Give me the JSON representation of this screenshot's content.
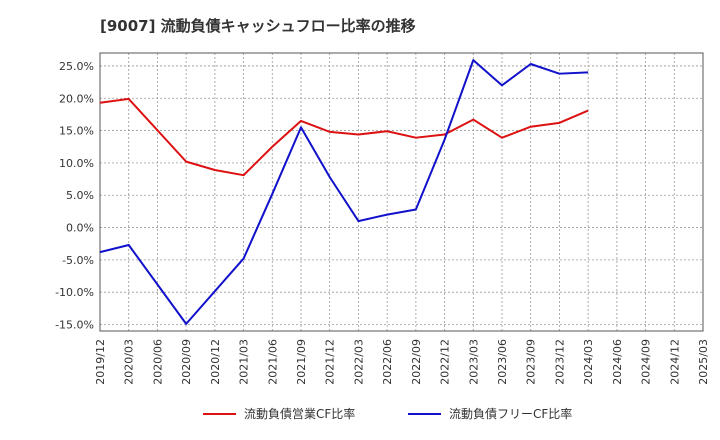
{
  "chart_data": {
    "type": "line",
    "title": "[9007]  流動負債キャッシュフロー比率の推移",
    "xlabel": "",
    "ylabel": "",
    "ylim": [
      -16,
      27
    ],
    "grid": true,
    "legend_position": "bottom",
    "x_ticks": [
      "2019/12",
      "2020/03",
      "2020/06",
      "2020/09",
      "2020/12",
      "2021/03",
      "2021/06",
      "2021/09",
      "2021/12",
      "2022/03",
      "2022/06",
      "2022/09",
      "2022/12",
      "2023/03",
      "2023/06",
      "2023/09",
      "2023/12",
      "2024/03",
      "2024/06",
      "2024/09",
      "2024/12",
      "2025/03"
    ],
    "y_ticks": [
      {
        "value": 25,
        "label": "25.0%"
      },
      {
        "value": 20,
        "label": "20.0%"
      },
      {
        "value": 15,
        "label": "15.0%"
      },
      {
        "value": 10,
        "label": "10.0%"
      },
      {
        "value": 5,
        "label": "5.0%"
      },
      {
        "value": 0,
        "label": "0.0%"
      },
      {
        "value": -5,
        "label": "-5.0%"
      },
      {
        "value": -10,
        "label": "-10.0%"
      },
      {
        "value": -15,
        "label": "-15.0%"
      }
    ],
    "series": [
      {
        "name": "流動負債営業CF比率",
        "color": "#dd1111",
        "points": [
          {
            "x": "2019/12",
            "y": 19.3
          },
          {
            "x": "2020/03",
            "y": 19.9
          },
          {
            "x": "2020/09",
            "y": 10.2
          },
          {
            "x": "2020/12",
            "y": 8.9
          },
          {
            "x": "2021/03",
            "y": 8.1
          },
          {
            "x": "2021/06",
            "y": 12.5
          },
          {
            "x": "2021/09",
            "y": 16.5
          },
          {
            "x": "2021/12",
            "y": 14.8
          },
          {
            "x": "2022/03",
            "y": 14.4
          },
          {
            "x": "2022/06",
            "y": 14.9
          },
          {
            "x": "2022/09",
            "y": 13.9
          },
          {
            "x": "2022/12",
            "y": 14.4
          },
          {
            "x": "2023/03",
            "y": 16.7
          },
          {
            "x": "2023/06",
            "y": 13.9
          },
          {
            "x": "2023/09",
            "y": 15.6
          },
          {
            "x": "2023/12",
            "y": 16.2
          },
          {
            "x": "2024/03",
            "y": 18.1
          }
        ]
      },
      {
        "name": "流動負債フリーCF比率",
        "color": "#1111cc",
        "points": [
          {
            "x": "2019/12",
            "y": -3.8
          },
          {
            "x": "2020/03",
            "y": -2.7
          },
          {
            "x": "2020/09",
            "y": -14.9
          },
          {
            "x": "2021/03",
            "y": -4.8
          },
          {
            "x": "2021/06",
            "y": 5.2
          },
          {
            "x": "2021/09",
            "y": 15.5
          },
          {
            "x": "2021/12",
            "y": 7.8
          },
          {
            "x": "2022/03",
            "y": 1.0
          },
          {
            "x": "2022/06",
            "y": 2.0
          },
          {
            "x": "2022/09",
            "y": 2.8
          },
          {
            "x": "2022/12",
            "y": 13.6
          },
          {
            "x": "2023/03",
            "y": 25.9
          },
          {
            "x": "2023/06",
            "y": 22.0
          },
          {
            "x": "2023/09",
            "y": 25.3
          },
          {
            "x": "2023/12",
            "y": 23.8
          },
          {
            "x": "2024/03",
            "y": 24.0
          }
        ]
      }
    ]
  }
}
